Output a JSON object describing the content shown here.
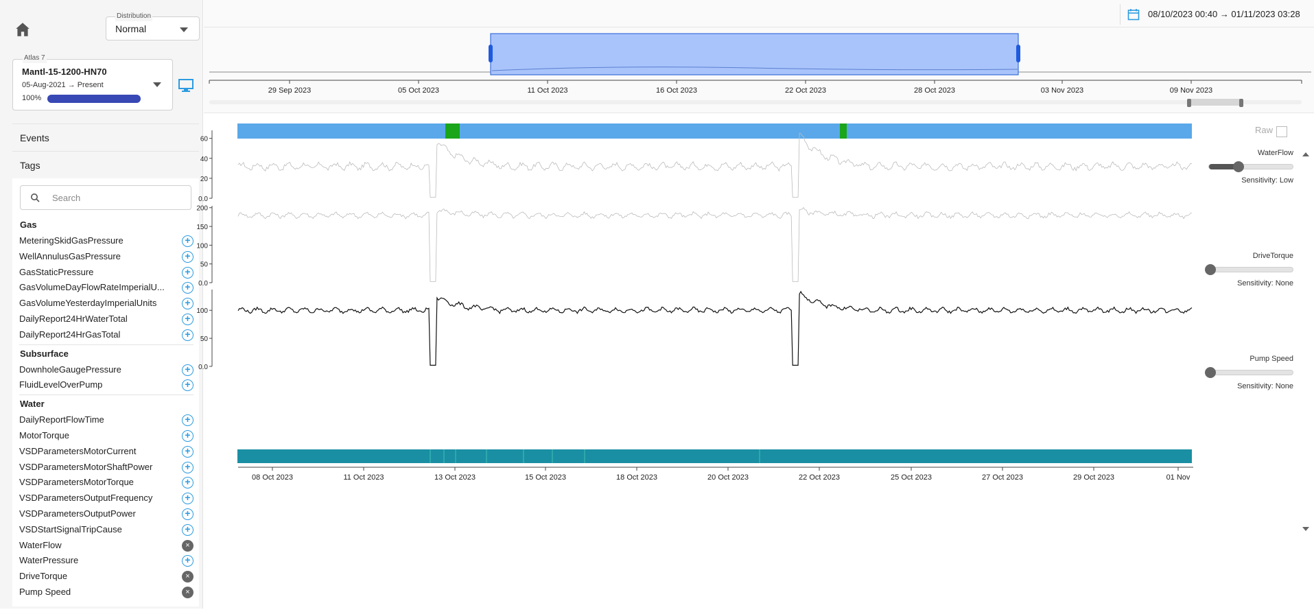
{
  "distribution": {
    "label": "Distribution",
    "value": "Normal"
  },
  "well": {
    "label": "Atlas 7",
    "name": "Mantl-15-1200-HN70",
    "range": "05-Aug-2021 → Present",
    "progress_text": "100%",
    "progress": 1.0
  },
  "sections": {
    "events": "Events",
    "tags": "Tags"
  },
  "search": {
    "placeholder": "Search"
  },
  "groups": [
    {
      "title": "Gas",
      "tags": [
        {
          "name": "MeteringSkidGasPressure",
          "state": "add"
        },
        {
          "name": "WellAnnulusGasPressure",
          "state": "add"
        },
        {
          "name": "GasStaticPressure",
          "state": "add"
        },
        {
          "name": "GasVolumeDayFlowRateImperialU...",
          "state": "add"
        },
        {
          "name": "GasVolumeYesterdayImperialUnits",
          "state": "add"
        },
        {
          "name": "DailyReport24HrWaterTotal",
          "state": "add"
        },
        {
          "name": "DailyReport24HrGasTotal",
          "state": "add"
        }
      ]
    },
    {
      "title": "Subsurface",
      "tags": [
        {
          "name": "DownholeGaugePressure",
          "state": "add"
        },
        {
          "name": "FluidLevelOverPump",
          "state": "add"
        }
      ]
    },
    {
      "title": "Water",
      "tags": [
        {
          "name": "DailyReportFlowTime",
          "state": "add"
        },
        {
          "name": "MotorTorque",
          "state": "add"
        },
        {
          "name": "VSDParametersMotorCurrent",
          "state": "add"
        },
        {
          "name": "VSDParametersMotorShaftPower",
          "state": "add"
        },
        {
          "name": "VSDParametersMotorTorque",
          "state": "add"
        },
        {
          "name": "VSDParametersOutputFrequency",
          "state": "add"
        },
        {
          "name": "VSDParametersOutputPower",
          "state": "add"
        },
        {
          "name": "VSDStartSignalTripCause",
          "state": "add"
        },
        {
          "name": "WaterFlow",
          "state": "remove"
        },
        {
          "name": "WaterPressure",
          "state": "add"
        },
        {
          "name": "DriveTorque",
          "state": "remove"
        },
        {
          "name": "Pump Speed",
          "state": "remove"
        }
      ]
    }
  ],
  "date_range": "08/10/2023 00:40 → 01/11/2023 03:28",
  "navigator": {
    "ticks": [
      "29 Sep 2023",
      "05 Oct 2023",
      "11 Oct 2023",
      "16 Oct 2023",
      "22 Oct 2023",
      "28 Oct 2023",
      "03 Nov 2023",
      "09 Nov 2023"
    ],
    "selection": [
      "08/10/2023 00:40",
      "01/11/2023 03:28"
    ]
  },
  "raw_label": "Raw",
  "colors": {
    "state_bar": "#5aa8ea",
    "event_green": "#1aa51a",
    "bottom_bar": "#1a8fa3",
    "selection": "#a9c4fb"
  },
  "chart_data": [
    {
      "type": "line",
      "series": [
        {
          "name": "WaterFlow",
          "color": "#bbbbbb"
        }
      ],
      "x_start": "2023-10-08",
      "x_end": "2023-11-01",
      "yticks": [
        "0.0",
        "20",
        "40",
        "60"
      ],
      "ylim": [
        0,
        68
      ],
      "baseline": 32,
      "amplitude": 4,
      "dips": [
        {
          "x": "2023-10-12 22:00",
          "to": 1,
          "peak": 58
        },
        {
          "x": "2023-10-22 02:00",
          "to": 1,
          "peak": 66
        }
      ]
    },
    {
      "type": "line",
      "series": [
        {
          "name": "DriveTorque",
          "color": "#bbbbbb"
        }
      ],
      "x_start": "2023-10-08",
      "x_end": "2023-11-01",
      "yticks": [
        "0.0",
        "50",
        "100",
        "150",
        "200"
      ],
      "ylim": [
        0,
        205
      ],
      "baseline": 180,
      "amplitude": 8,
      "dips": [
        {
          "x": "2023-10-12 22:00",
          "to": 3,
          "peak": 195
        },
        {
          "x": "2023-10-22 02:00",
          "to": 3,
          "peak": 195
        }
      ]
    },
    {
      "type": "line",
      "series": [
        {
          "name": "Pump Speed",
          "color": "#111111"
        }
      ],
      "x_start": "2023-10-08",
      "x_end": "2023-11-01",
      "yticks": [
        "0.0",
        "50",
        "100"
      ],
      "ylim": [
        0,
        137
      ],
      "baseline": 100,
      "amplitude": 5,
      "dips": [
        {
          "x": "2023-10-12 22:00",
          "to": 2,
          "peak": 125
        },
        {
          "x": "2023-10-22 02:00",
          "to": 2,
          "peak": 132
        }
      ]
    }
  ],
  "x_axis": {
    "ticks": [
      "08 Oct 2023",
      "11 Oct 2023",
      "13 Oct 2023",
      "15 Oct 2023",
      "18 Oct 2023",
      "20 Oct 2023",
      "22 Oct 2023",
      "25 Oct 2023",
      "27 Oct 2023",
      "29 Oct 2023",
      "01 Nov"
    ]
  },
  "sensitivity": [
    {
      "name": "WaterFlow",
      "label": "Sensitivity: Low",
      "level": 0.33
    },
    {
      "name": "DriveTorque",
      "label": "Sensitivity: None",
      "level": 0.0
    },
    {
      "name": "Pump Speed",
      "label": "Sensitivity: None",
      "level": 0.0
    }
  ]
}
